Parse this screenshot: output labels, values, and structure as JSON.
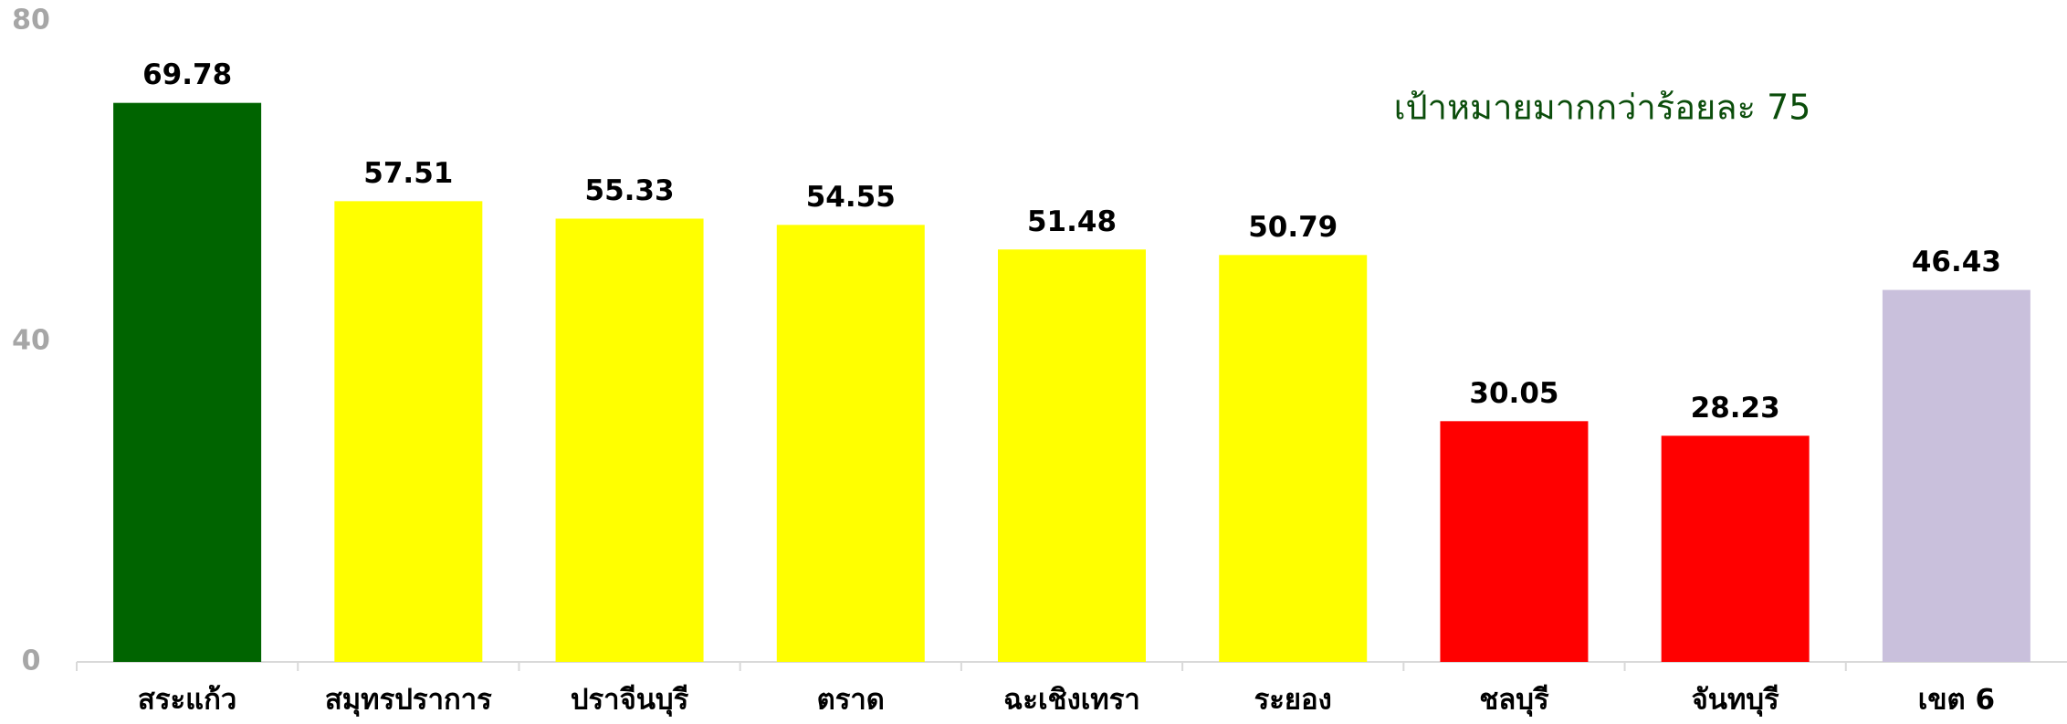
{
  "chart_data": {
    "type": "bar",
    "annotation": "เป้าหมายมากกว่าร้อยละ 75",
    "categories": [
      "สระแก้ว",
      "สมุทรปราการ",
      "ปราจีนบุรี",
      "ตราด",
      "ฉะเชิงเทรา",
      "ระยอง",
      "ชลบุรี",
      "จันทบุรี",
      "เขต 6"
    ],
    "values": [
      69.78,
      57.51,
      55.33,
      54.55,
      51.48,
      50.79,
      30.05,
      28.23,
      46.43
    ],
    "colors": [
      "#006400",
      "#ffff00",
      "#ffff00",
      "#ffff00",
      "#ffff00",
      "#ffff00",
      "#ff0000",
      "#ff0000",
      "#c9c0dc"
    ],
    "ylim": [
      0,
      80
    ],
    "yticks": [
      0,
      40,
      80
    ],
    "grid": false
  }
}
